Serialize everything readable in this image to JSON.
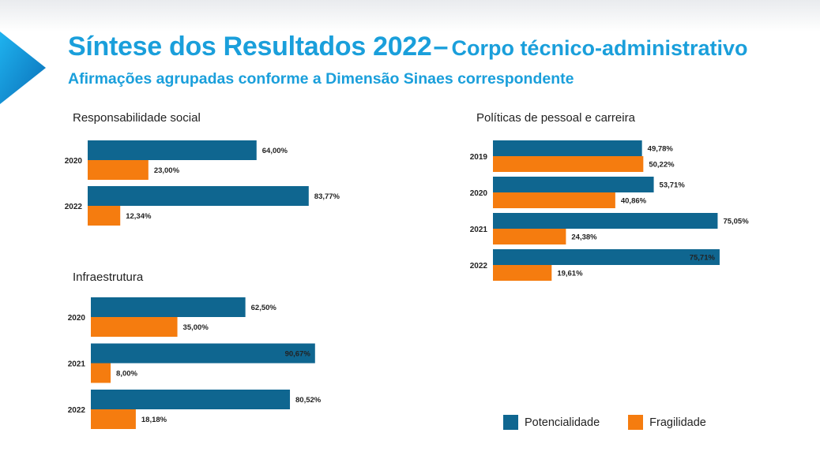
{
  "header": {
    "title": "Síntese dos Resultados 2022",
    "title_dash": "–",
    "title_suffix": "Corpo técnico-administrativo",
    "subtitle": "Afirmações agrupadas conforme a Dimensão Sinaes correspondente"
  },
  "colors": {
    "accent": "#1a9fdb",
    "potencialidade": "#0f6690",
    "fragilidade": "#f57c0f"
  },
  "legend": [
    {
      "label": "Potencialidade",
      "color": "#0f6690"
    },
    {
      "label": "Fragilidade",
      "color": "#f57c0f"
    }
  ],
  "chart_data": [
    {
      "type": "bar",
      "orientation": "horizontal",
      "title": "Responsabilidade social",
      "categories": [
        "2020",
        "2022"
      ],
      "series": [
        {
          "name": "Potencialidade",
          "values": [
            64.0,
            83.77
          ],
          "labels": [
            "64,00%",
            "83,77%"
          ]
        },
        {
          "name": "Fragilidade",
          "values": [
            23.0,
            12.34
          ],
          "labels": [
            "23,00%",
            "12,34%"
          ]
        }
      ]
    },
    {
      "type": "bar",
      "orientation": "horizontal",
      "title": "Infraestrutura",
      "categories": [
        "2020",
        "2021",
        "2022"
      ],
      "series": [
        {
          "name": "Potencialidade",
          "values": [
            62.5,
            90.67,
            80.52
          ],
          "labels": [
            "62,50%",
            "90,67%",
            "80,52%"
          ]
        },
        {
          "name": "Fragilidade",
          "values": [
            35.0,
            8.0,
            18.18
          ],
          "labels": [
            "35,00%",
            "8,00%",
            "18,18%"
          ]
        }
      ]
    },
    {
      "type": "bar",
      "orientation": "horizontal",
      "title": "Políticas de pessoal e carreira",
      "categories": [
        "2019",
        "2020",
        "2021",
        "2022"
      ],
      "series": [
        {
          "name": "Potencialidade",
          "values": [
            49.78,
            53.71,
            75.05,
            75.71
          ],
          "labels": [
            "49,78%",
            "53,71%",
            "75,05%",
            "75,71%"
          ]
        },
        {
          "name": "Fragilidade",
          "values": [
            50.22,
            40.86,
            24.38,
            19.61
          ],
          "labels": [
            "50,22%",
            "40,86%",
            "24,38%",
            "19,61%"
          ]
        }
      ]
    }
  ]
}
